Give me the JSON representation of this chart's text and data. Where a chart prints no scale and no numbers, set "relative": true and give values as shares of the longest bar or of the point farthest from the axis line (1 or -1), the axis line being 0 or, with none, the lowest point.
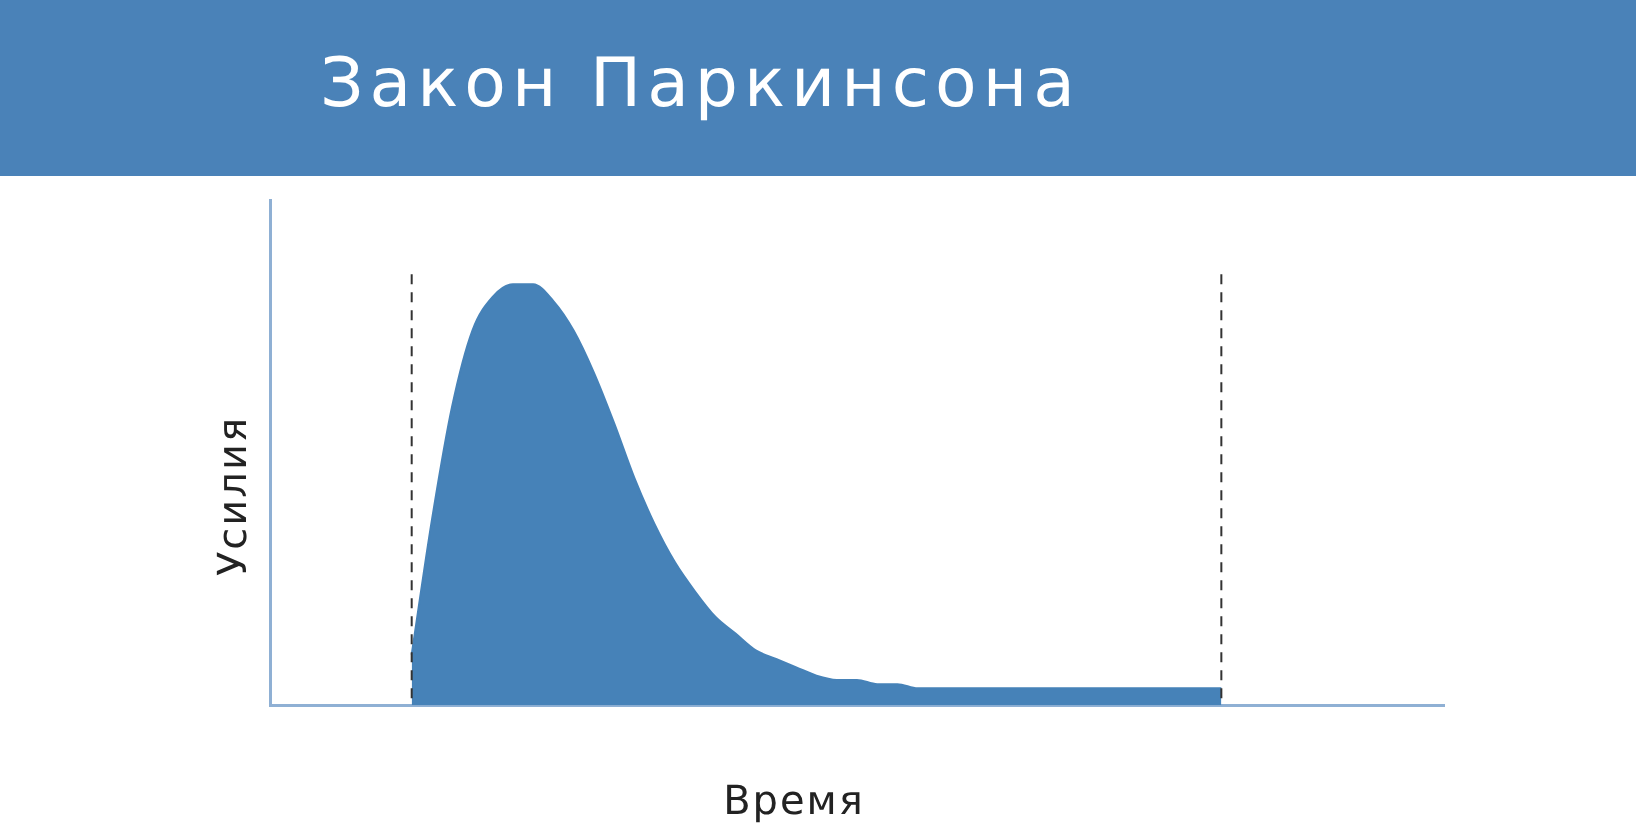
{
  "chart_data": {
    "type": "area",
    "title": "Закон Паркинсона",
    "xlabel": "Время",
    "ylabel": "Усилия",
    "relative": true,
    "categories": [
      null,
      null,
      null,
      null,
      null,
      null,
      null,
      null,
      null,
      null,
      null,
      null,
      null,
      null,
      null,
      null,
      null,
      null,
      null,
      null,
      null,
      null,
      null,
      null,
      null,
      null,
      null,
      null,
      null,
      null,
      null,
      null,
      null,
      null,
      null,
      null,
      null,
      null,
      null,
      null,
      null,
      null,
      null,
      null,
      null,
      null,
      null,
      null,
      null,
      null,
      null,
      null,
      null,
      null,
      null,
      null,
      null,
      null,
      null
    ],
    "series": [
      {
        "color": "#4682b8",
        "values": [
          null,
          null,
          null,
          null,
          null,
          null,
          null,
          0.12,
          0.44,
          0.71,
          0.89,
          0.97,
          1,
          1,
          0.96,
          0.89,
          0.79,
          0.67,
          0.54,
          0.43,
          0.34,
          0.27,
          0.21,
          0.17,
          0.13,
          0.11,
          0.09,
          0.07,
          0.06,
          0.06,
          0.05,
          0.05,
          0.04,
          0.04,
          0.04,
          0.04,
          0.04,
          0.04,
          0.04,
          0.04,
          0.04,
          0.04,
          0.04,
          0.04,
          0.04,
          0.04,
          0.04,
          0.04,
          null,
          null,
          null,
          null,
          null,
          null,
          null,
          null,
          null,
          null,
          null
        ]
      }
    ],
    "grid": false,
    "legend": false
  }
}
